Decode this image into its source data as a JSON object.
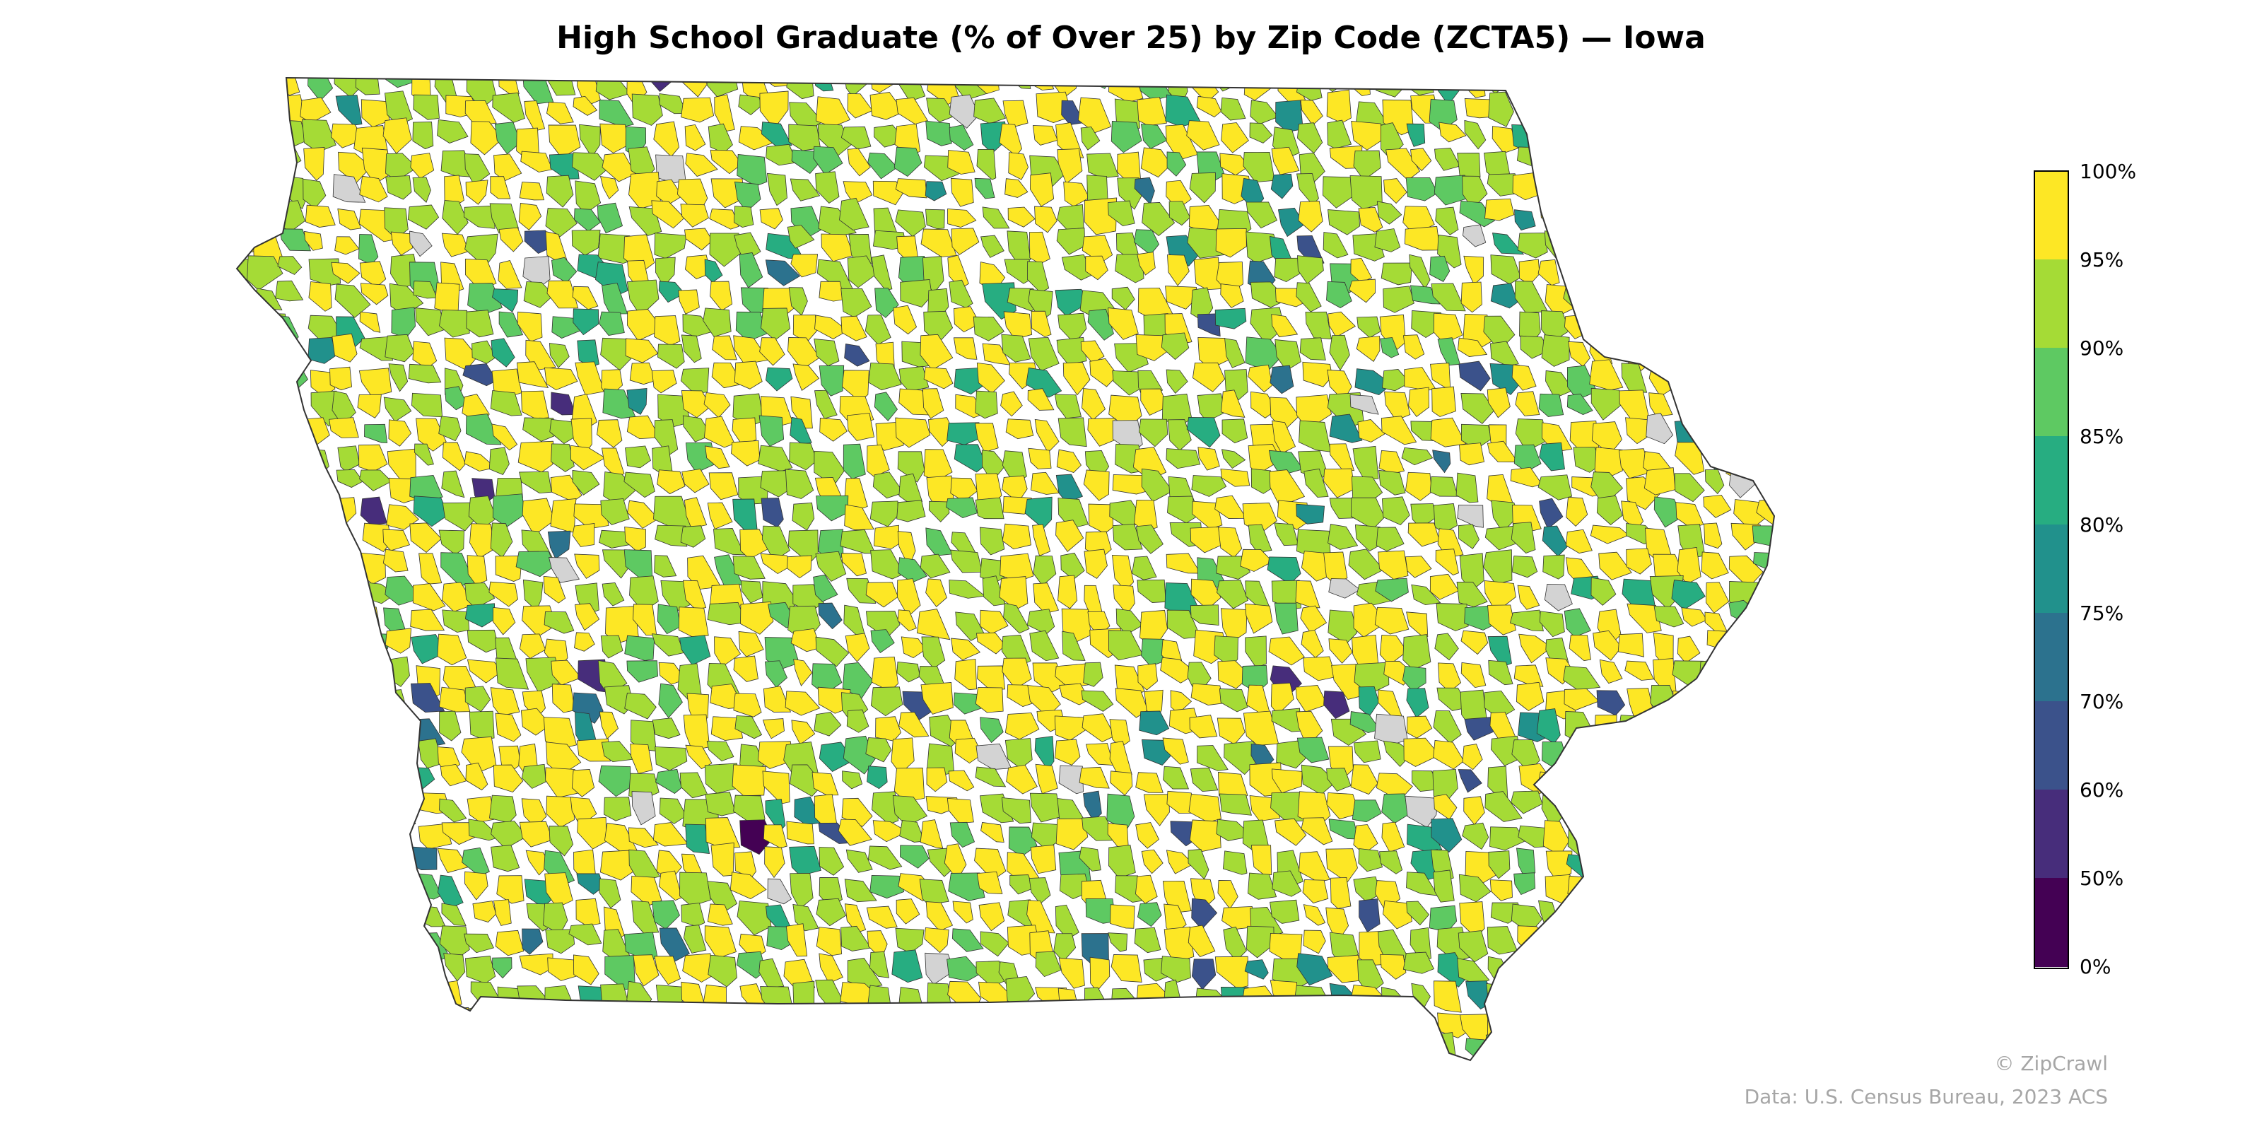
{
  "title": "High School Graduate (% of Over 25) by Zip Code (ZCTA5) — Iowa",
  "map": {
    "state": "Iowa",
    "variable": "High School Graduate (% of Over 25)",
    "geography": "ZCTA5",
    "no_data_color": "#d3d3d3",
    "boundary_color": "#333333"
  },
  "legend": {
    "ticks": [
      "100%",
      "95%",
      "90%",
      "85%",
      "80%",
      "75%",
      "70%",
      "60%",
      "50%",
      "0%"
    ],
    "bins": [
      {
        "range": "95%–100%",
        "color": "#fde725"
      },
      {
        "range": "90%–95%",
        "color": "#a5db36"
      },
      {
        "range": "85%–90%",
        "color": "#5ec962"
      },
      {
        "range": "80%–85%",
        "color": "#27ad81"
      },
      {
        "range": "75%–80%",
        "color": "#21918c"
      },
      {
        "range": "70%–75%",
        "color": "#2c728e"
      },
      {
        "range": "60%–70%",
        "color": "#3b528b"
      },
      {
        "range": "50%–60%",
        "color": "#472d7b"
      },
      {
        "range": "0%–50%",
        "color": "#440154"
      }
    ]
  },
  "footer": {
    "copyright": "© ZipCrawl",
    "source": "Data: U.S. Census Bureau, 2023 ACS"
  }
}
